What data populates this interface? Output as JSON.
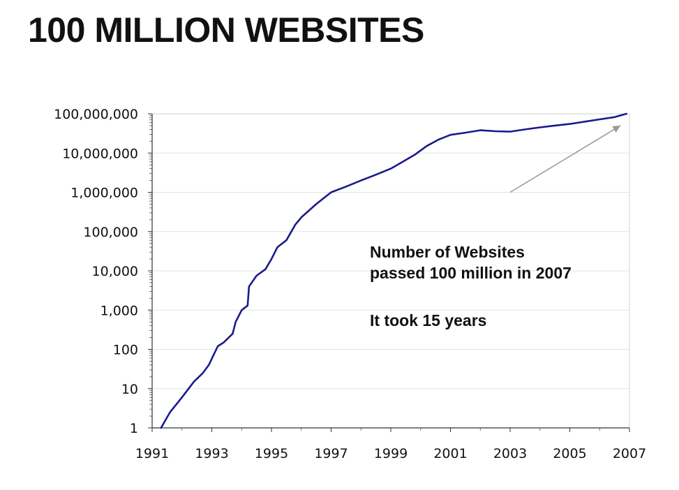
{
  "title": "100 MILLION WEBSITES",
  "chart_data": {
    "type": "line",
    "y_scale": "log",
    "ylim": [
      1,
      100000000
    ],
    "xlim": [
      1991,
      2007
    ],
    "x_ticks": [
      1991,
      1993,
      1995,
      1997,
      1999,
      2001,
      2003,
      2005,
      2007
    ],
    "y_ticks": [
      {
        "value": 1,
        "label": "1"
      },
      {
        "value": 10,
        "label": "10"
      },
      {
        "value": 100,
        "label": "100"
      },
      {
        "value": 1000,
        "label": "1,000"
      },
      {
        "value": 10000,
        "label": "10,000"
      },
      {
        "value": 100000,
        "label": "100,000"
      },
      {
        "value": 1000000,
        "label": "1,000,000"
      },
      {
        "value": 10000000,
        "label": "10,000,000"
      },
      {
        "value": 100000000,
        "label": "100,000,000"
      }
    ],
    "grid": true,
    "line_color": "#1a1a8c",
    "series": [
      {
        "x": [
          1991.3,
          1991.6,
          1992.0,
          1992.4,
          1992.7,
          1992.9,
          1993.2,
          1993.4,
          1993.7,
          1993.8,
          1994.0,
          1994.2,
          1994.25,
          1994.5,
          1994.8,
          1995.0,
          1995.2,
          1995.5,
          1995.8,
          1996.0,
          1996.5,
          1997.0,
          1997.5,
          1998.0,
          1998.5,
          1999.0,
          1999.4,
          1999.8,
          2000.2,
          2000.6,
          2001.0,
          2001.5,
          2002.0,
          2002.5,
          2003.0,
          2003.5,
          2004.0,
          2004.5,
          2005.0,
          2005.5,
          2006.0,
          2006.5,
          2006.9
        ],
        "values": [
          1,
          2.5,
          6,
          15,
          25,
          40,
          120,
          150,
          250,
          500,
          1000,
          1300,
          4000,
          7500,
          11000,
          20000,
          40000,
          60000,
          150000,
          230000,
          500000,
          1000000,
          1400000,
          2000000,
          2800000,
          4000000,
          6000000,
          9000000,
          15000000,
          22000000,
          29000000,
          33000000,
          38000000,
          36000000,
          35000000,
          40000000,
          45000000,
          50000000,
          55000000,
          63000000,
          72000000,
          82000000,
          100000000
        ]
      }
    ],
    "annotation": {
      "lines": [
        "Number of Websites",
        "passed 100 million in 2007",
        "",
        "It took 15 years"
      ],
      "arrow_from": [
        2003.0,
        1000000
      ],
      "arrow_to": [
        2006.7,
        50000000
      ],
      "arrow_color": "#999999"
    }
  }
}
